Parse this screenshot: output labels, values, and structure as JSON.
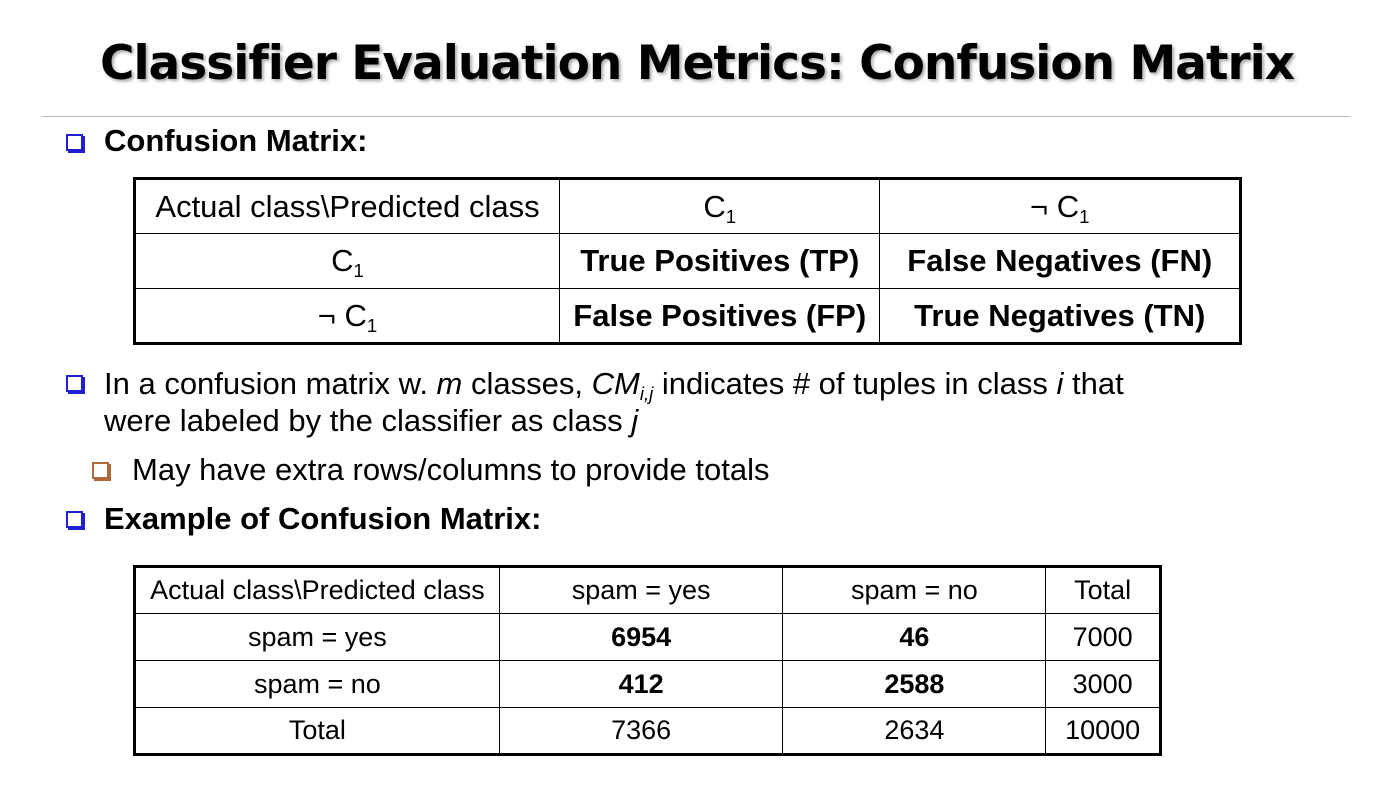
{
  "title": "Classifier Evaluation Metrics: Confusion Matrix",
  "bullets": {
    "b1": "Confusion Matrix:",
    "b2_pre": "In a confusion matrix w. ",
    "b2_m": "m",
    "b2_mid": " classes, ",
    "b2_cm": "CM",
    "b2_sub": "i,j",
    "b2_post": " indicates # of tuples in class ",
    "b2_i": "i",
    "b2_end": "  that",
    "b2_line2_pre": "were labeled by the classifier as class ",
    "b2_j": "j",
    "b3": "May have extra rows/columns to provide totals",
    "b4": "Example of Confusion Matrix:"
  },
  "table1": {
    "header": {
      "corner": "Actual class\\Predicted class",
      "c1": "C",
      "c1_sub": "1",
      "nc1": "¬ C",
      "nc1_sub": "1"
    },
    "row1": {
      "label": "C",
      "label_sub": "1",
      "tp": "True Positives (TP)",
      "fn": "False Negatives (FN)"
    },
    "row2": {
      "label": "¬ C",
      "label_sub": "1",
      "fp": "False Positives (FP)",
      "tn": "True Negatives (TN)"
    }
  },
  "table2": {
    "header": [
      "Actual class\\Predicted class",
      "spam =  yes",
      "spam = no",
      "Total"
    ],
    "rows": [
      [
        "spam = yes",
        "6954",
        "46",
        "7000"
      ],
      [
        "spam = no",
        "412",
        "2588",
        "3000"
      ],
      [
        "Total",
        "7366",
        "2634",
        "10000"
      ]
    ]
  }
}
